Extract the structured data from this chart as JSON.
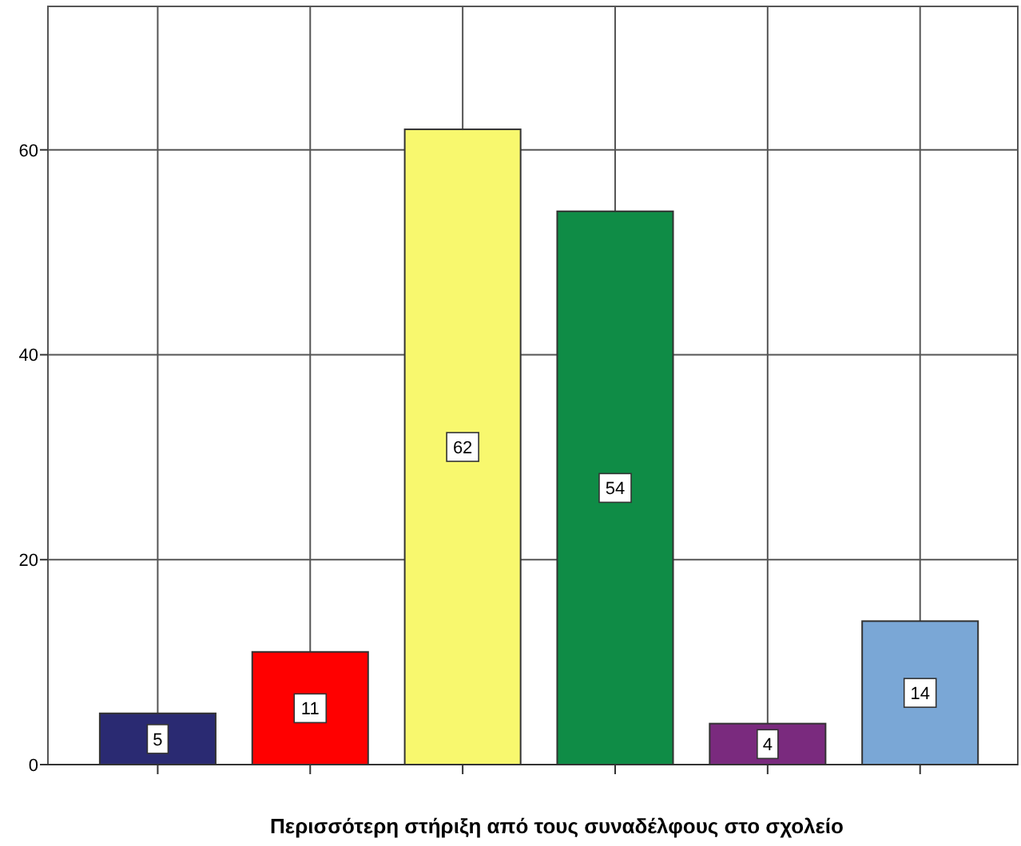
{
  "chart_data": {
    "type": "bar",
    "xlabel": "Περισσότερη στήριξη από τους συναδέλφους στο σχολείο",
    "categories": [
      null,
      null,
      null,
      null,
      null,
      null
    ],
    "values": [
      5,
      11,
      62,
      54,
      4,
      14
    ],
    "colors": [
      "#2a2a72",
      "#ff0000",
      "#f8f86e",
      "#0f8c46",
      "#7a2a7e",
      "#7aa7d6"
    ],
    "ylim": [
      0,
      74
    ],
    "yticks": [
      0,
      20,
      40,
      60
    ],
    "grid": true,
    "data_labels": true
  }
}
